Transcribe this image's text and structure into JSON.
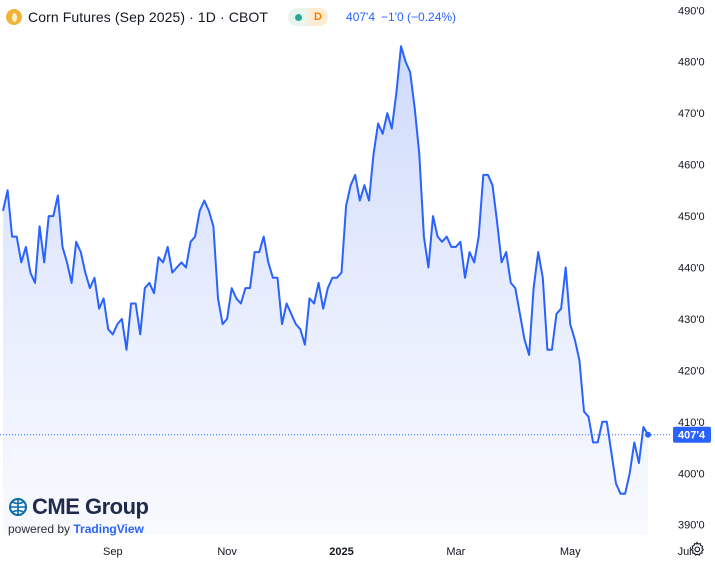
{
  "legend": {
    "symbol_icon": "corn-icon",
    "title": "Corn Futures (Sep 2025) · 1D · CBOT",
    "status_dot": "market-status-dot",
    "delay_badge": "D",
    "price": "407'4",
    "change": "−1'0 (−0.24%)"
  },
  "logo": {
    "brand": "CME Group",
    "powered_prefix": "powered by",
    "powered_brand": "TradingView"
  },
  "settings_icon": "gear-icon",
  "colors": {
    "line": "#2962ff",
    "fill_top": "#c9d6fb",
    "fill_bottom": "#f3f6fe",
    "axis_text": "#131722",
    "last_label_bg": "#2962ff",
    "accent_orange": "#f57c00"
  },
  "chart_data": {
    "type": "area",
    "title": "Corn Futures (Sep 2025) · 1D · CBOT",
    "xlabel": "",
    "ylabel": "",
    "ylim": [
      388,
      492
    ],
    "y_ticks": [
      {
        "value": 390,
        "label": "390'0"
      },
      {
        "value": 400,
        "label": "400'0"
      },
      {
        "value": 410,
        "label": "410'0"
      },
      {
        "value": 420,
        "label": "420'0"
      },
      {
        "value": 430,
        "label": "430'0"
      },
      {
        "value": 440,
        "label": "440'0"
      },
      {
        "value": 450,
        "label": "450'0"
      },
      {
        "value": 460,
        "label": "460'0"
      },
      {
        "value": 470,
        "label": "470'0"
      },
      {
        "value": 480,
        "label": "480'0"
      },
      {
        "value": 490,
        "label": "490'0"
      }
    ],
    "x_ticks": [
      {
        "index": 24,
        "label": "Sep",
        "bold": false
      },
      {
        "index": 49,
        "label": "Nov",
        "bold": false
      },
      {
        "index": 74,
        "label": "2025",
        "bold": true
      },
      {
        "index": 99,
        "label": "Mar",
        "bold": false
      },
      {
        "index": 124,
        "label": "May",
        "bold": false
      },
      {
        "index": 149,
        "label": "Jul",
        "bold": false
      }
    ],
    "last_value": {
      "value": 407.5,
      "label": "407'4"
    },
    "series": [
      {
        "name": "Corn Futures (Sep 2025)",
        "values": [
          451,
          455,
          446,
          446,
          441,
          444,
          439,
          437,
          448,
          441,
          450,
          450,
          454,
          444,
          441,
          437,
          445,
          443,
          439,
          436,
          438,
          432,
          434,
          428,
          427,
          429,
          430,
          424,
          433,
          433,
          427,
          436,
          437,
          435,
          442,
          441,
          444,
          439,
          440,
          441,
          440,
          445,
          446,
          451,
          453,
          451,
          448,
          434,
          429,
          430,
          436,
          434,
          433,
          436,
          436,
          443,
          443,
          446,
          441,
          438,
          438,
          429,
          433,
          431,
          429,
          428,
          425,
          434,
          433,
          437,
          432,
          436,
          438,
          438,
          439,
          452,
          456,
          458,
          453,
          456,
          453,
          462,
          468,
          466,
          470,
          467,
          474,
          483,
          480,
          478,
          471,
          462,
          446,
          440,
          450,
          446,
          445,
          446,
          444,
          444,
          445,
          438,
          443,
          441,
          446,
          458,
          458,
          456,
          449,
          441,
          443,
          437,
          436,
          431,
          426,
          423,
          436,
          443,
          438,
          424,
          424,
          431,
          432,
          440,
          429,
          426,
          422,
          412,
          411,
          406,
          406,
          410,
          410,
          404,
          398,
          396,
          396,
          400,
          406,
          402,
          409,
          407.5
        ]
      }
    ]
  }
}
